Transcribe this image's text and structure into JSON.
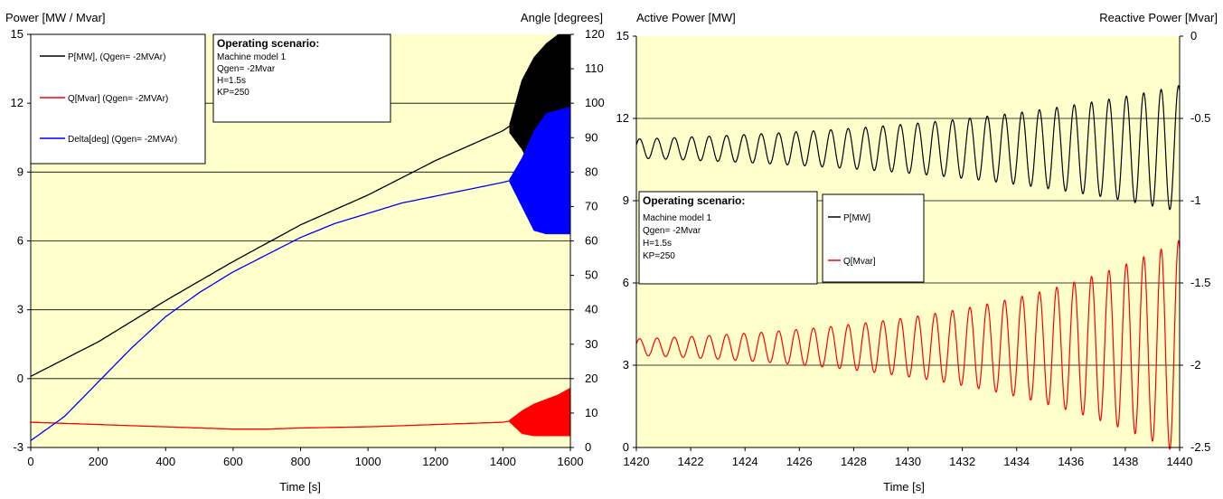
{
  "chart_data": [
    {
      "type": "line",
      "ylabel": "Power [MW / Mvar]",
      "y2label": "Angle [degrees]",
      "xlabel": "Time [s]",
      "xlim": [
        0,
        1600
      ],
      "ylim": [
        -3,
        15
      ],
      "y2lim": [
        0,
        120
      ],
      "xticks": [
        "0",
        "200",
        "400",
        "600",
        "800",
        "1000",
        "1200",
        "1400",
        "1600"
      ],
      "yticks": [
        "-3",
        "0",
        "3",
        "6",
        "9",
        "12",
        "15"
      ],
      "y2ticks": [
        "0",
        "10",
        "20",
        "30",
        "40",
        "50",
        "60",
        "70",
        "80",
        "90",
        "100",
        "110",
        "120"
      ],
      "grid": "horizontal",
      "background": "#ffffcc",
      "legend_position": "top-left",
      "series": [
        {
          "name": "P[MW],  (Qgen= -2MVAr)",
          "color": "#000000",
          "axis": "left",
          "x": [
            0,
            200,
            400,
            600,
            800,
            1000,
            1200,
            1400,
            1420
          ],
          "y": [
            0.1,
            1.6,
            3.4,
            5.1,
            6.7,
            8.0,
            9.5,
            10.8,
            11.0
          ],
          "oscillation": {
            "start": 1420,
            "end": 1600,
            "lower": [
              10.7,
              10.0,
              9.0,
              8.9,
              8.9,
              8.9
            ],
            "upper": [
              11.1,
              13.0,
              14.0,
              14.6,
              15,
              15
            ]
          }
        },
        {
          "name": "Q[Mvar] (Qgen= -2MVAr)",
          "color": "#ff0000",
          "axis": "left",
          "x": [
            0,
            200,
            400,
            600,
            700,
            800,
            1000,
            1200,
            1400,
            1420
          ],
          "y": [
            -1.9,
            -2.0,
            -2.1,
            -2.2,
            -2.2,
            -2.15,
            -2.1,
            -2.0,
            -1.9,
            -1.85
          ],
          "oscillation": {
            "start": 1420,
            "end": 1600,
            "lower": [
              -1.9,
              -2.4,
              -2.5,
              -2.5,
              -2.5,
              -2.5
            ],
            "upper": [
              -1.8,
              -1.4,
              -1.1,
              -0.9,
              -0.7,
              -0.4
            ]
          }
        },
        {
          "name": "Delta[deg] (Qgen= -2MVAr)",
          "color": "#0000ff",
          "axis": "right",
          "x": [
            0,
            100,
            200,
            300,
            400,
            500,
            600,
            700,
            800,
            900,
            1000,
            1100,
            1200,
            1300,
            1400,
            1420
          ],
          "y": [
            2,
            9,
            19,
            29,
            38,
            45,
            51,
            56,
            61,
            65,
            68,
            71,
            73,
            75,
            77,
            77.5
          ],
          "oscillation": {
            "start": 1420,
            "end": 1600,
            "lower": [
              77,
              70,
              63,
              62,
              62,
              62
            ],
            "upper": [
              78,
              84,
              92,
              97,
              98,
              99
            ]
          }
        }
      ],
      "annotation": {
        "title": "Operating scenario:",
        "lines": [
          "Machine model 1",
          "Qgen= -2Mvar",
          "H=1.5s",
          "KP=250"
        ]
      }
    },
    {
      "type": "line",
      "ylabel": "Active Power [MW]",
      "y2label": "Reactive Power [Mvar]",
      "xlabel": "Time [s]",
      "xlim": [
        1420,
        1440
      ],
      "ylim": [
        0,
        15
      ],
      "y2lim": [
        -2.5,
        0
      ],
      "xticks": [
        "1420",
        "1422",
        "1424",
        "1426",
        "1428",
        "1430",
        "1432",
        "1434",
        "1436",
        "1438",
        "1440"
      ],
      "yticks": [
        "0",
        "3",
        "6",
        "9",
        "12",
        "15"
      ],
      "y2ticks": [
        "-2.5",
        "-2",
        "-1.5",
        "-1",
        "-0.5",
        "0"
      ],
      "grid": "horizontal",
      "background": "#ffffcc",
      "legend_position": "center-left",
      "oscillation_period_s": 0.64,
      "series": [
        {
          "name": "P[MW]",
          "color": "#000000",
          "axis": "left",
          "mean": 10.9,
          "amplitude_start": 0.35,
          "amplitude_end": 2.3,
          "growth": "exponential"
        },
        {
          "name": "Q[Mvar]",
          "color": "#ff0000",
          "axis": "right",
          "mean": -1.89,
          "amplitude_start": 0.05,
          "amplitude_end": 0.65,
          "growth": "exponential"
        }
      ],
      "annotation": {
        "title": "Operating scenario:",
        "lines": [
          "Machine model 1",
          "Qgen= -2Mvar",
          "H=1.5s",
          "KP=250"
        ]
      }
    }
  ]
}
